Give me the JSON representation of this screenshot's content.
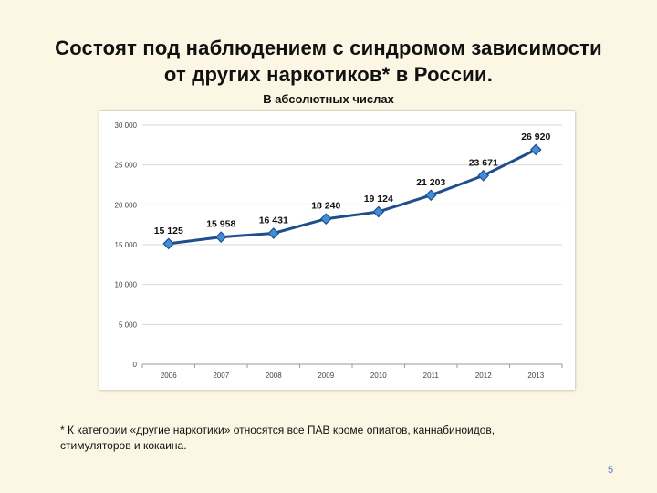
{
  "slide": {
    "title_line1": "Состоят под наблюдением с синдромом зависимости",
    "title_line2": "от других наркотиков* в России.",
    "subtitle": "В абсолютных числах",
    "footnote_line1": "* К категории «другие наркотики» относятся все ПАВ кроме опиатов, каннабиноидов,",
    "footnote_line2": "стимуляторов и кокаина.",
    "page_number": "5"
  },
  "chart_data": {
    "type": "line",
    "title": "",
    "xlabel": "",
    "ylabel": "",
    "categories": [
      "2006",
      "2007",
      "2008",
      "2009",
      "2010",
      "2011",
      "2012",
      "2013"
    ],
    "series": [
      {
        "values": [
          15125,
          15958,
          16431,
          18240,
          19124,
          21203,
          23671,
          26920
        ],
        "data_labels": [
          "15 125",
          "15 958",
          "16 431",
          "18 240",
          "19 124",
          "21 203",
          "23 671",
          "26 920"
        ],
        "color": "#1f4e8c",
        "marker_color": "#3f8fd8"
      }
    ],
    "ylim": [
      0,
      30000
    ],
    "yticks": [
      0,
      5000,
      10000,
      15000,
      20000,
      25000,
      30000
    ],
    "ytick_labels": [
      "0",
      "5 000",
      "10 000",
      "15 000",
      "20 000",
      "25 000",
      "30 000"
    ],
    "grid": true,
    "gridline_color": "#d9d9d9",
    "legend": false
  }
}
